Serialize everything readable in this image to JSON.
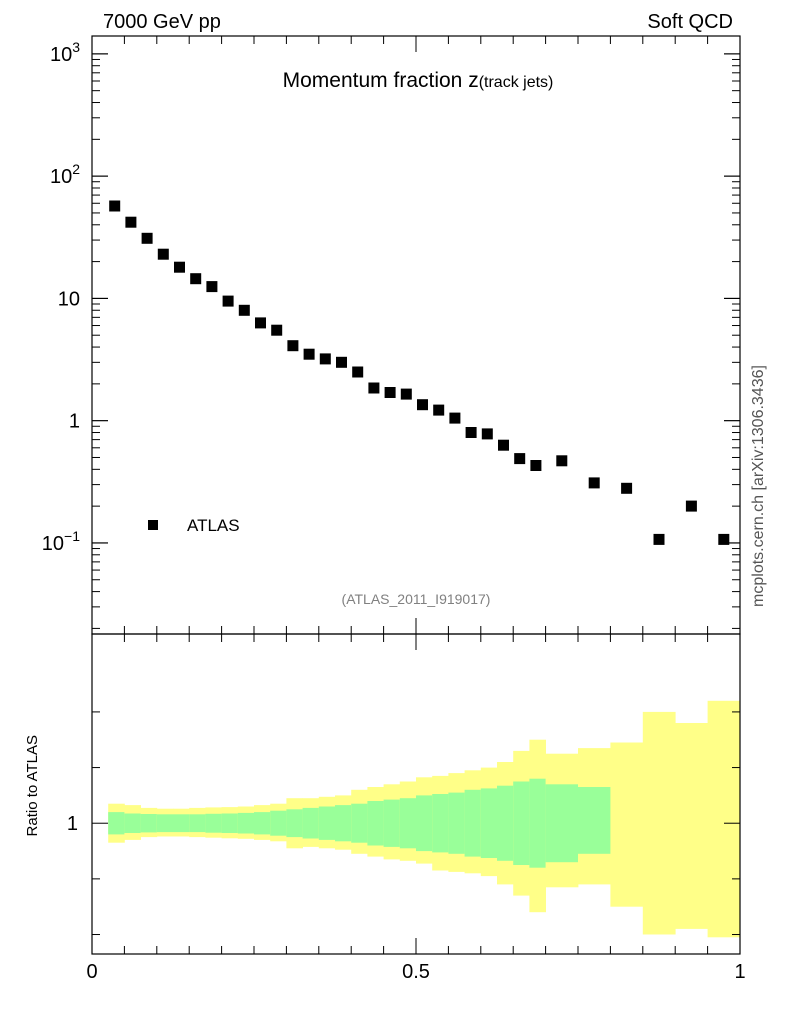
{
  "header": {
    "left": "7000 GeV pp",
    "right": "Soft QCD"
  },
  "side_label": "mcplots.cern.ch [arXiv:1306.3436]",
  "chart_data": {
    "type": "scatter",
    "title_main": "Momentum fraction ",
    "title_var": "z",
    "title_sub": "(track jets)",
    "analysis_id": "(ATLAS_2011_I919017)",
    "xlim": [
      0,
      1
    ],
    "ylim_main": [
      0.018,
      1400
    ],
    "yscale_main": "log",
    "legend": {
      "label": "ATLAS",
      "position": "lower-left"
    },
    "main_yticks": [
      {
        "value": 1000,
        "base": "10",
        "exp": "3"
      },
      {
        "value": 100,
        "base": "10",
        "exp": "2"
      },
      {
        "value": 10,
        "base": "10",
        "exp": ""
      },
      {
        "value": 1,
        "base": "1",
        "exp": ""
      },
      {
        "value": 0.1,
        "base": "10",
        "exp": "−1"
      }
    ],
    "xticks": [
      {
        "value": 0,
        "label": "0"
      },
      {
        "value": 0.5,
        "label": "0.5"
      },
      {
        "value": 1,
        "label": "1"
      }
    ],
    "series": [
      {
        "name": "ATLAS",
        "x": [
          0.035,
          0.06,
          0.085,
          0.11,
          0.135,
          0.16,
          0.185,
          0.21,
          0.235,
          0.26,
          0.285,
          0.31,
          0.335,
          0.36,
          0.385,
          0.41,
          0.435,
          0.46,
          0.485,
          0.51,
          0.535,
          0.56,
          0.585,
          0.61,
          0.635,
          0.66,
          0.685,
          0.725,
          0.775,
          0.825,
          0.875,
          0.925,
          0.975
        ],
        "y": [
          57,
          42,
          31,
          23,
          18,
          14.5,
          12.5,
          9.5,
          8,
          6.3,
          5.5,
          4.1,
          3.5,
          3.2,
          3.0,
          2.5,
          1.85,
          1.7,
          1.65,
          1.35,
          1.22,
          1.05,
          0.8,
          0.78,
          0.63,
          0.49,
          0.43,
          0.47,
          0.31,
          0.28,
          0.107,
          0.2,
          0.107
        ]
      }
    ],
    "ratio": {
      "ylabel": "Ratio to ATLAS",
      "ylim": [
        0.53,
        1.68
      ],
      "yticks": [
        {
          "value": 1,
          "label": "1"
        }
      ],
      "bins": [
        {
          "x0": 0.025,
          "x1": 0.05,
          "stat": [
            0.96,
            1.04
          ],
          "total": [
            0.93,
            1.07
          ]
        },
        {
          "x0": 0.05,
          "x1": 0.075,
          "stat": [
            0.965,
            1.035
          ],
          "total": [
            0.94,
            1.065
          ]
        },
        {
          "x0": 0.075,
          "x1": 0.1,
          "stat": [
            0.967,
            1.033
          ],
          "total": [
            0.95,
            1.055
          ]
        },
        {
          "x0": 0.1,
          "x1": 0.125,
          "stat": [
            0.968,
            1.032
          ],
          "total": [
            0.952,
            1.052
          ]
        },
        {
          "x0": 0.125,
          "x1": 0.15,
          "stat": [
            0.968,
            1.032
          ],
          "total": [
            0.952,
            1.052
          ]
        },
        {
          "x0": 0.15,
          "x1": 0.175,
          "stat": [
            0.968,
            1.032
          ],
          "total": [
            0.95,
            1.055
          ]
        },
        {
          "x0": 0.175,
          "x1": 0.2,
          "stat": [
            0.966,
            1.034
          ],
          "total": [
            0.948,
            1.057
          ]
        },
        {
          "x0": 0.2,
          "x1": 0.225,
          "stat": [
            0.965,
            1.035
          ],
          "total": [
            0.946,
            1.058
          ]
        },
        {
          "x0": 0.225,
          "x1": 0.25,
          "stat": [
            0.963,
            1.037
          ],
          "total": [
            0.944,
            1.06
          ]
        },
        {
          "x0": 0.25,
          "x1": 0.275,
          "stat": [
            0.96,
            1.04
          ],
          "total": [
            0.94,
            1.065
          ]
        },
        {
          "x0": 0.275,
          "x1": 0.3,
          "stat": [
            0.955,
            1.045
          ],
          "total": [
            0.935,
            1.07
          ]
        },
        {
          "x0": 0.3,
          "x1": 0.325,
          "stat": [
            0.95,
            1.05
          ],
          "total": [
            0.91,
            1.09
          ]
        },
        {
          "x0": 0.325,
          "x1": 0.35,
          "stat": [
            0.945,
            1.055
          ],
          "total": [
            0.915,
            1.09
          ]
        },
        {
          "x0": 0.35,
          "x1": 0.375,
          "stat": [
            0.94,
            1.06
          ],
          "total": [
            0.91,
            1.095
          ]
        },
        {
          "x0": 0.375,
          "x1": 0.4,
          "stat": [
            0.935,
            1.065
          ],
          "total": [
            0.905,
            1.1
          ]
        },
        {
          "x0": 0.4,
          "x1": 0.425,
          "stat": [
            0.93,
            1.07
          ],
          "total": [
            0.89,
            1.12
          ]
        },
        {
          "x0": 0.425,
          "x1": 0.45,
          "stat": [
            0.92,
            1.08
          ],
          "total": [
            0.88,
            1.13
          ]
        },
        {
          "x0": 0.45,
          "x1": 0.475,
          "stat": [
            0.915,
            1.085
          ],
          "total": [
            0.87,
            1.14
          ]
        },
        {
          "x0": 0.475,
          "x1": 0.5,
          "stat": [
            0.91,
            1.09
          ],
          "total": [
            0.865,
            1.15
          ]
        },
        {
          "x0": 0.5,
          "x1": 0.525,
          "stat": [
            0.9,
            1.1
          ],
          "total": [
            0.855,
            1.165
          ]
        },
        {
          "x0": 0.525,
          "x1": 0.55,
          "stat": [
            0.895,
            1.105
          ],
          "total": [
            0.83,
            1.17
          ]
        },
        {
          "x0": 0.55,
          "x1": 0.575,
          "stat": [
            0.89,
            1.11
          ],
          "total": [
            0.825,
            1.18
          ]
        },
        {
          "x0": 0.575,
          "x1": 0.6,
          "stat": [
            0.88,
            1.12
          ],
          "total": [
            0.82,
            1.19
          ]
        },
        {
          "x0": 0.6,
          "x1": 0.625,
          "stat": [
            0.875,
            1.125
          ],
          "total": [
            0.81,
            1.2
          ]
        },
        {
          "x0": 0.625,
          "x1": 0.65,
          "stat": [
            0.865,
            1.135
          ],
          "total": [
            0.78,
            1.22
          ]
        },
        {
          "x0": 0.65,
          "x1": 0.675,
          "stat": [
            0.85,
            1.15
          ],
          "total": [
            0.74,
            1.26
          ]
        },
        {
          "x0": 0.675,
          "x1": 0.7,
          "stat": [
            0.84,
            1.16
          ],
          "total": [
            0.68,
            1.3
          ]
        },
        {
          "x0": 0.7,
          "x1": 0.75,
          "stat": [
            0.86,
            1.14
          ],
          "total": [
            0.77,
            1.25
          ]
        },
        {
          "x0": 0.75,
          "x1": 0.8,
          "stat": [
            0.89,
            1.13
          ],
          "total": [
            0.78,
            1.27
          ]
        },
        {
          "x0": 0.8,
          "x1": 0.85,
          "stat": null,
          "total": [
            0.7,
            1.29
          ]
        },
        {
          "x0": 0.85,
          "x1": 0.9,
          "stat": null,
          "total": [
            0.6,
            1.4
          ]
        },
        {
          "x0": 0.9,
          "x1": 0.95,
          "stat": null,
          "total": [
            0.62,
            1.36
          ]
        },
        {
          "x0": 0.95,
          "x1": 1.0,
          "stat": null,
          "total": [
            0.59,
            1.44
          ]
        }
      ]
    },
    "colors": {
      "marker": "#000000",
      "stat_band": "#99ff99",
      "total_band": "#ffff88",
      "analysis_id": "#808080",
      "side_label": "#555555"
    }
  }
}
